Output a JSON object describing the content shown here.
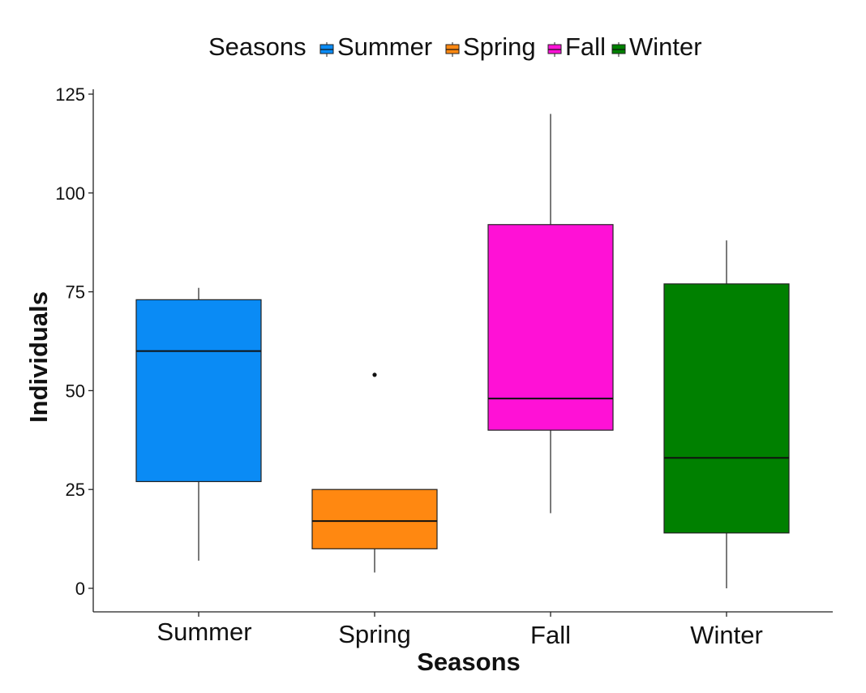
{
  "chart_data": {
    "type": "box",
    "title": "",
    "xlabel": "Seasons",
    "ylabel": "Individuals",
    "ylim": [
      -6,
      126
    ],
    "yticks": [
      0,
      25,
      50,
      75,
      100,
      125
    ],
    "categories": [
      "Summer",
      "Spring",
      "Fall",
      "Winter"
    ],
    "legend": {
      "title": "Seasons",
      "position": "top",
      "entries": [
        "Summer",
        "Spring",
        "Fall",
        "Winter"
      ]
    },
    "grid": false,
    "series": [
      {
        "name": "Summer",
        "color": "#0a8bf5",
        "min": 7,
        "q1": 27,
        "median": 60,
        "q3": 73,
        "max": 76,
        "outliers": []
      },
      {
        "name": "Spring",
        "color": "#ff8811",
        "min": 4,
        "q1": 10,
        "median": 17,
        "q3": 25,
        "max": 25,
        "outliers": [
          54
        ]
      },
      {
        "name": "Fall",
        "color": "#ff11d6",
        "min": 19,
        "q1": 40,
        "median": 48,
        "q3": 92,
        "max": 120,
        "outliers": []
      },
      {
        "name": "Winter",
        "color": "#008000",
        "min": 0,
        "q1": 14,
        "median": 33,
        "q3": 77,
        "max": 88,
        "outliers": []
      }
    ]
  }
}
